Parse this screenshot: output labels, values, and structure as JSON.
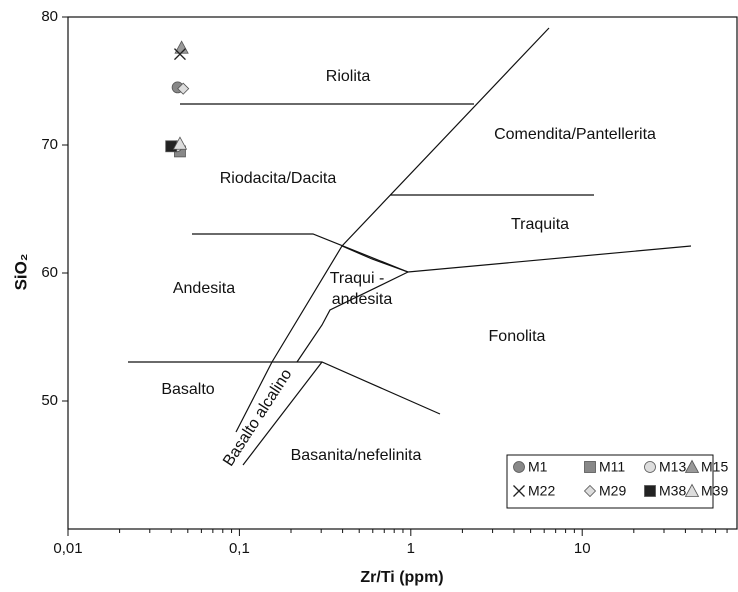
{
  "chart_data": {
    "type": "scatter",
    "xlabel": "Zr/Ti (ppm)",
    "ylabel": "SiO₂",
    "xlog": true,
    "xlim": [
      0.01,
      80
    ],
    "xticks": [
      {
        "value": 0.01,
        "label": "0,01"
      },
      {
        "value": 0.1,
        "label": "0,1"
      },
      1,
      10
    ],
    "ylim": [
      40,
      80
    ],
    "yticks": [
      50,
      60,
      70,
      80
    ],
    "grid": false,
    "legend": "lower right",
    "annotations": [
      "Riolita",
      "Comendita/Pantellerita",
      "Riodacita/Dacita",
      "Traquita",
      "Traqui -",
      "andesita",
      "Andesita",
      "Fonolita",
      "Basalto",
      "Basalto alcalino",
      "Basanita/nefelinita"
    ],
    "series": [
      {
        "name": "M1",
        "color": "#888888",
        "marker": "circle",
        "x": [
          0.0436
        ],
        "values": [
          74.5
        ]
      },
      {
        "name": "M11",
        "color": "#888888",
        "marker": "square",
        "x": [
          0.045
        ],
        "values": [
          69.5
        ]
      },
      {
        "name": "M13",
        "color": "#dddddd",
        "marker": "circle",
        "x": [
          0.043
        ],
        "values": [
          69.9
        ]
      },
      {
        "name": "M15",
        "color": "#999999",
        "marker": "triangle",
        "x": [
          0.046
        ],
        "values": [
          77.6
        ]
      },
      {
        "name": "M22",
        "color": "#222222",
        "marker": "x",
        "x": [
          0.045
        ],
        "values": [
          77.1
        ]
      },
      {
        "name": "M29",
        "color": "#dddddd",
        "marker": "diamond",
        "x": [
          0.047
        ],
        "values": [
          74.4
        ]
      },
      {
        "name": "M38",
        "color": "#222222",
        "marker": "square",
        "x": [
          0.04
        ],
        "values": [
          69.9
        ]
      },
      {
        "name": "M39",
        "color": "#dddddd",
        "marker": "triangle",
        "x": [
          0.045
        ],
        "values": [
          70.1
        ]
      }
    ]
  }
}
